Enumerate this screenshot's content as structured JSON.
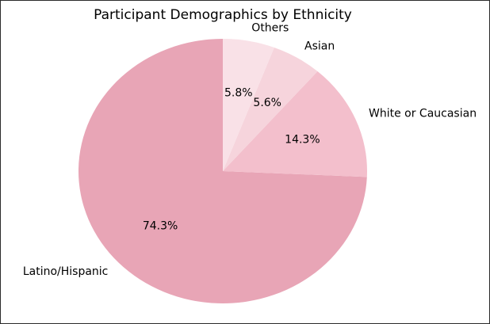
{
  "chart_data": {
    "type": "pie",
    "title": "Participant Demographics by Ethnicity",
    "labels": [
      "Latino/Hispanic",
      "White or Caucasian",
      "Asian",
      "Others"
    ],
    "values": [
      74.3,
      14.3,
      5.6,
      5.8
    ],
    "value_labels": [
      "74.3%",
      "14.3%",
      "5.6%",
      "5.8%"
    ],
    "colors": [
      "#e8a5b6",
      "#f3bfcc",
      "#f6d4dc",
      "#f9e1e7"
    ],
    "start_angle_deg": 90,
    "direction": "counterclockwise",
    "legend": "none"
  }
}
